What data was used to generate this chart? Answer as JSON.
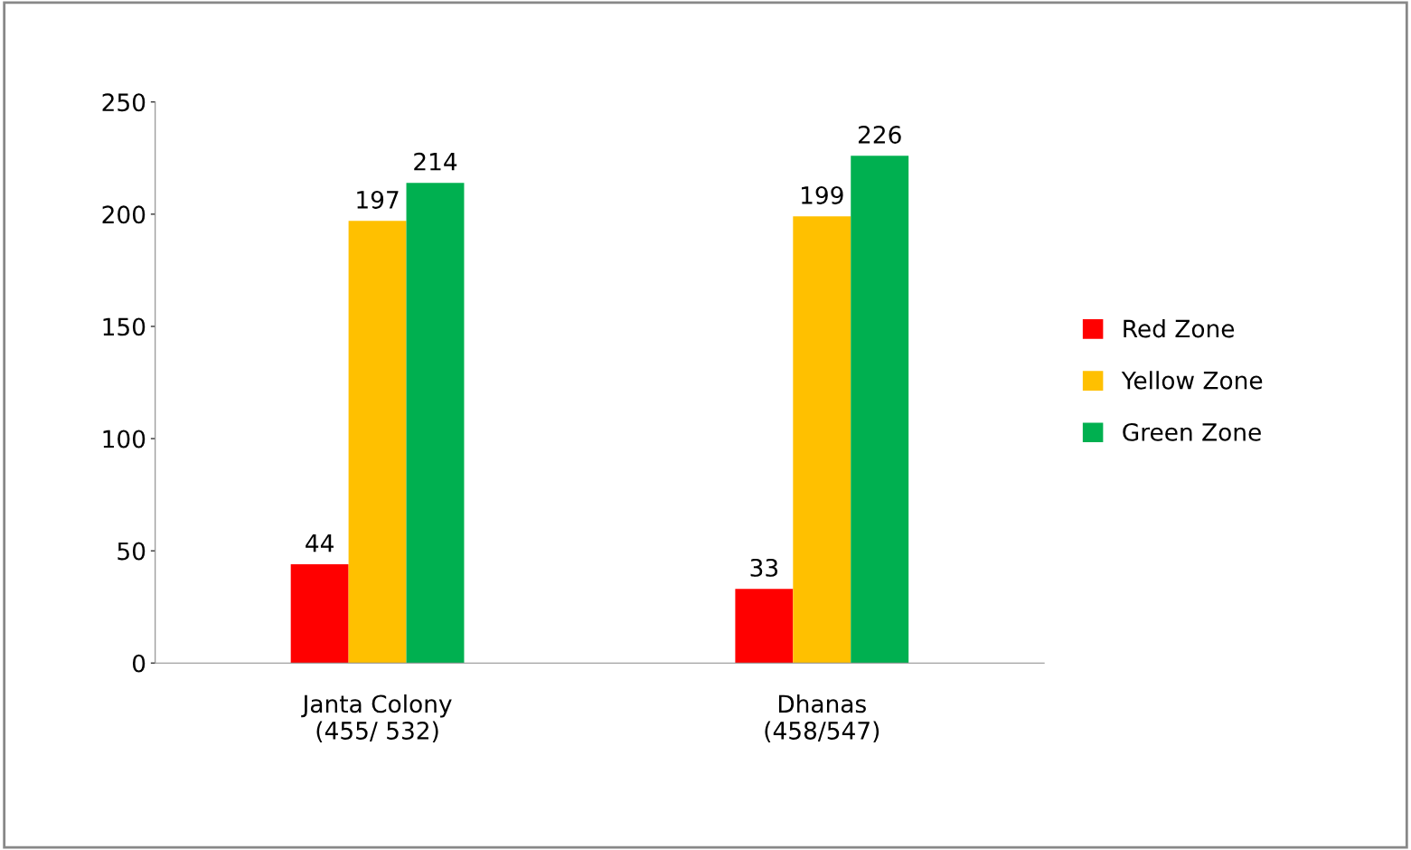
{
  "chart_data": {
    "type": "bar",
    "categories": [
      "Janta Colony\n(455/ 532)",
      "Dhanas\n(458/547)"
    ],
    "series": [
      {
        "name": "Red Zone",
        "color": "#ff0000",
        "values": [
          44,
          33
        ]
      },
      {
        "name": "Yellow Zone",
        "color": "#ffc000",
        "values": [
          197,
          199
        ]
      },
      {
        "name": "Green Zone",
        "color": "#00b050",
        "values": [
          214,
          226
        ]
      }
    ],
    "ylim": [
      0,
      250
    ],
    "yticks": [
      0,
      50,
      100,
      150,
      200,
      250
    ],
    "data_labels": true,
    "legend": "right",
    "grid": false
  }
}
